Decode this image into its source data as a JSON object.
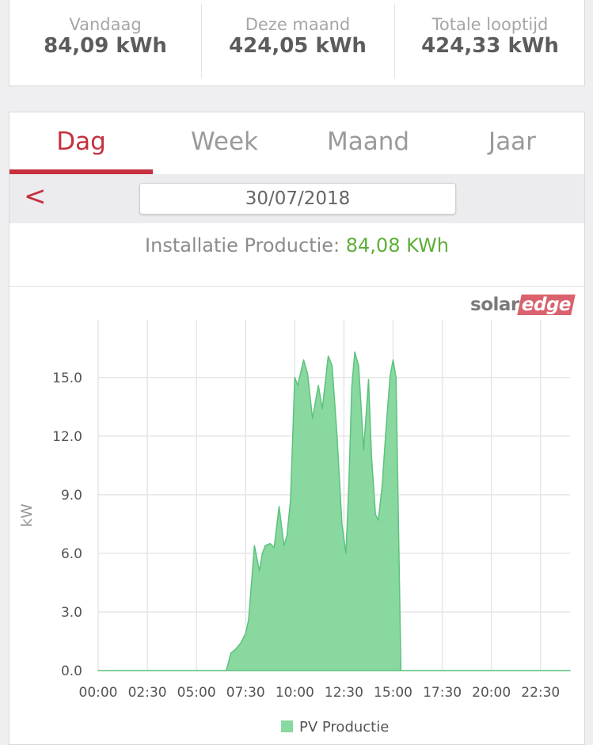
{
  "stats": [
    {
      "label": "Vandaag",
      "value": "84,09 kWh"
    },
    {
      "label": "Deze maand",
      "value": "424,05 kWh"
    },
    {
      "label": "Totale looptijd",
      "value": "424,33 kWh"
    }
  ],
  "tabs": [
    {
      "label": "Dag",
      "active": true
    },
    {
      "label": "Week",
      "active": false
    },
    {
      "label": "Maand",
      "active": false
    },
    {
      "label": "Jaar",
      "active": false
    }
  ],
  "date_nav": {
    "prev_icon": "chevron-left-icon",
    "prev_glyph": "<",
    "date": "30/07/2018"
  },
  "production": {
    "label": "Installatie Productie:",
    "value": "84,08 KWh"
  },
  "brand": {
    "solar": "solar",
    "edge": "edge"
  },
  "colors": {
    "accent": "#c6303e",
    "green_text": "#5eae3a",
    "area_fill": "#88d8a0",
    "area_line": "#5cc27e"
  },
  "chart_data": {
    "type": "area",
    "title": "",
    "xlabel": "",
    "ylabel": "kW",
    "xlim": [
      0,
      24
    ],
    "ylim": [
      0,
      18
    ],
    "y_ticks": [
      0,
      3,
      6,
      9,
      12,
      15
    ],
    "y_tick_labels": [
      "0.0",
      "3.0",
      "6.0",
      "9.0",
      "12.0",
      "15.0"
    ],
    "x_ticks": [
      0,
      2.5,
      5,
      7.5,
      10,
      12.5,
      15,
      17.5,
      20,
      22.5
    ],
    "x_tick_labels": [
      "00:00",
      "02:30",
      "05:00",
      "07:30",
      "10:00",
      "12:30",
      "15:00",
      "17:30",
      "20:00",
      "22:30"
    ],
    "grid": true,
    "legend_position": "bottom-center",
    "series": [
      {
        "name": "PV Productie",
        "points": [
          [
            0,
            0
          ],
          [
            6.5,
            0
          ],
          [
            6.6,
            0.3
          ],
          [
            6.75,
            0.9
          ],
          [
            7.0,
            1.1
          ],
          [
            7.25,
            1.4
          ],
          [
            7.5,
            1.9
          ],
          [
            7.65,
            2.6
          ],
          [
            7.8,
            4.5
          ],
          [
            7.95,
            6.4
          ],
          [
            8.2,
            5.1
          ],
          [
            8.35,
            6.0
          ],
          [
            8.5,
            6.4
          ],
          [
            8.75,
            6.5
          ],
          [
            8.95,
            6.3
          ],
          [
            9.2,
            8.4
          ],
          [
            9.45,
            6.4
          ],
          [
            9.6,
            6.9
          ],
          [
            9.78,
            8.7
          ],
          [
            10.0,
            15.0
          ],
          [
            10.15,
            14.6
          ],
          [
            10.45,
            15.9
          ],
          [
            10.65,
            15.2
          ],
          [
            10.9,
            12.9
          ],
          [
            11.2,
            14.6
          ],
          [
            11.4,
            13.4
          ],
          [
            11.7,
            16.1
          ],
          [
            11.9,
            15.6
          ],
          [
            12.15,
            12.0
          ],
          [
            12.4,
            7.5
          ],
          [
            12.6,
            6.0
          ],
          [
            12.75,
            9.5
          ],
          [
            12.9,
            14.5
          ],
          [
            13.05,
            16.3
          ],
          [
            13.25,
            15.6
          ],
          [
            13.5,
            11.3
          ],
          [
            13.75,
            14.9
          ],
          [
            13.9,
            11.0
          ],
          [
            14.1,
            8.0
          ],
          [
            14.25,
            7.7
          ],
          [
            14.45,
            9.5
          ],
          [
            14.65,
            12.5
          ],
          [
            14.85,
            15.1
          ],
          [
            15.0,
            15.9
          ],
          [
            15.15,
            15.0
          ],
          [
            15.4,
            0
          ],
          [
            24,
            0
          ]
        ]
      }
    ]
  }
}
